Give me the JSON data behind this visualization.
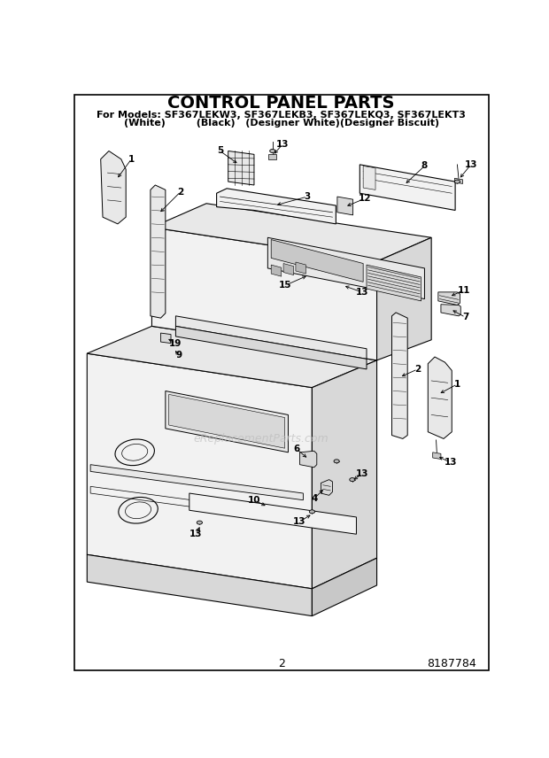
{
  "title": "CONTROL PANEL PARTS",
  "subtitle_line1": "For Models: SF367LEKW3, SF367LEKB3, SF367LEKQ3, SF367LEKT3",
  "subtitle_line2": "(White)         (Black)   (Designer White)(Designer Biscuit)",
  "page_number": "2",
  "part_number": "8187784",
  "watermark": "eReplacementParts.com",
  "bg": "#ffffff",
  "lc": "#000000",
  "gray1": "#f2f2f2",
  "gray2": "#e8e8e8",
  "gray3": "#d8d8d8",
  "gray4": "#c8c8c8",
  "gray5": "#b8b8b8",
  "title_fs": 14,
  "sub_fs": 8,
  "label_fs": 7.5
}
